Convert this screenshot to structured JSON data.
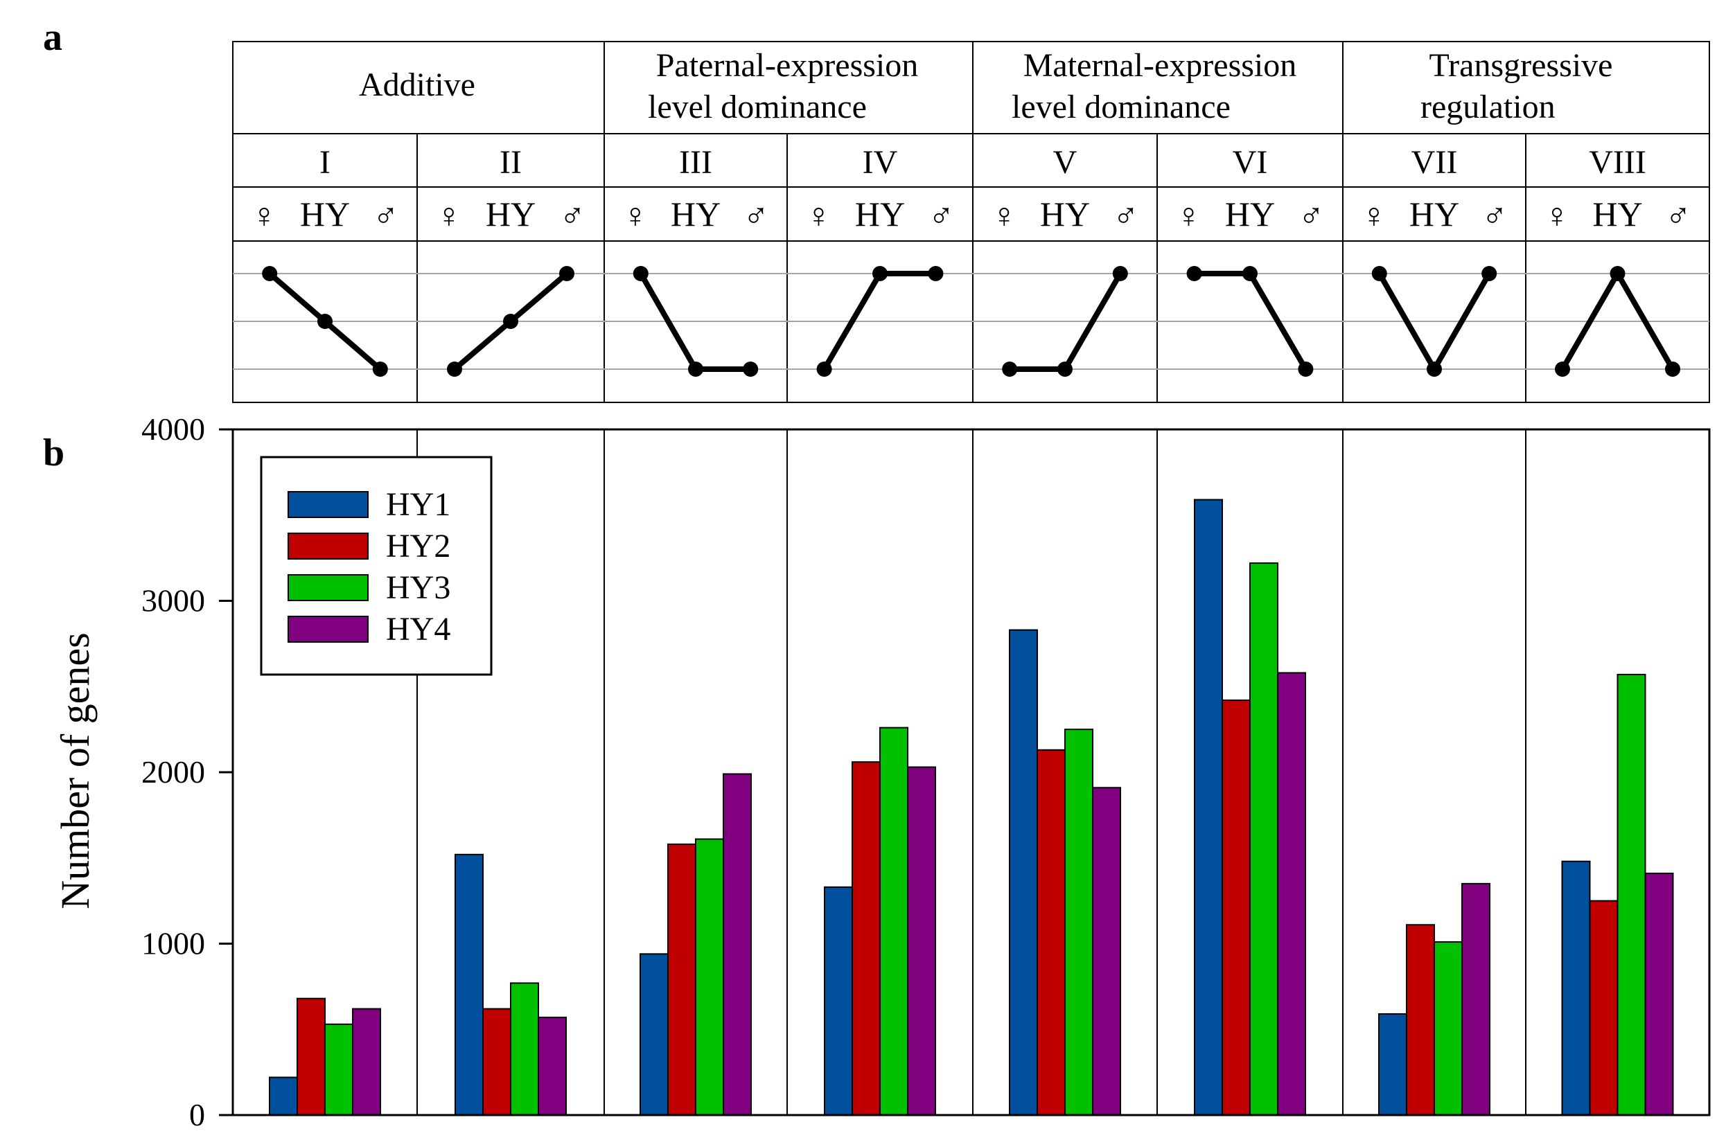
{
  "panel_labels": {
    "a": "a",
    "b": "b"
  },
  "groups": [
    {
      "line1": "Additive",
      "line2": ""
    },
    {
      "line1": "Paternal-expression",
      "line2": "level dominance"
    },
    {
      "line1": "Maternal-expression",
      "line2": "level dominance"
    },
    {
      "line1": "Transgressive",
      "line2": "regulation"
    }
  ],
  "symbols": {
    "female": "♀",
    "hybrid": "HY",
    "male": "♂"
  },
  "patterns": [
    {
      "label": "I",
      "levels": [
        2,
        1,
        0
      ]
    },
    {
      "label": "II",
      "levels": [
        0,
        1,
        2
      ]
    },
    {
      "label": "III",
      "levels": [
        2,
        0,
        0
      ]
    },
    {
      "label": "IV",
      "levels": [
        0,
        2,
        2
      ]
    },
    {
      "label": "V",
      "levels": [
        0,
        0,
        2
      ]
    },
    {
      "label": "VI",
      "levels": [
        2,
        2,
        0
      ]
    },
    {
      "label": "VII",
      "levels": [
        2,
        0,
        2
      ]
    },
    {
      "label": "VIII",
      "levels": [
        0,
        2,
        0
      ]
    }
  ],
  "colors": {
    "HY1": "#00509e",
    "HY2": "#c00000",
    "HY3": "#00c000",
    "HY4": "#800080",
    "grid": "#a6a6a6",
    "axis": "#000000"
  },
  "chart_data": {
    "type": "bar",
    "title": "",
    "xlabel": "",
    "ylabel": "Number of genes",
    "categories": [
      "I",
      "II",
      "III",
      "IV",
      "V",
      "VI",
      "VII",
      "VIII"
    ],
    "ylim": [
      0,
      4000
    ],
    "yticks": [
      "0",
      "1000",
      "2000",
      "3000",
      "4000"
    ],
    "legend_position": "top-left",
    "series": [
      {
        "name": "HY1",
        "values": [
          220,
          1520,
          940,
          1330,
          2830,
          3590,
          590,
          1480
        ]
      },
      {
        "name": "HY2",
        "values": [
          680,
          620,
          1580,
          2060,
          2130,
          2420,
          1110,
          1250
        ]
      },
      {
        "name": "HY3",
        "values": [
          530,
          770,
          1610,
          2260,
          2250,
          3220,
          1010,
          2570
        ]
      },
      {
        "name": "HY4",
        "values": [
          620,
          570,
          1990,
          2030,
          1910,
          2580,
          1350,
          1410
        ]
      }
    ]
  }
}
